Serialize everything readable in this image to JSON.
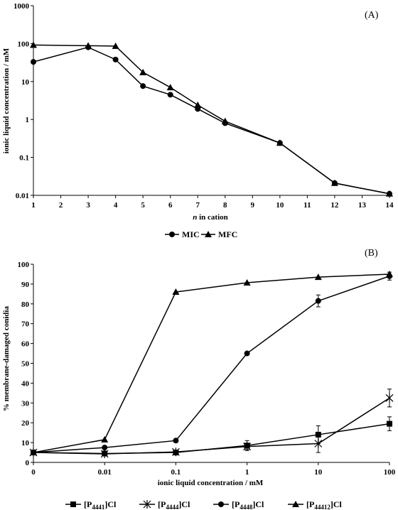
{
  "chart_data": [
    {
      "type": "line",
      "panel_label": "(A)",
      "xlabel_italic": "n",
      "xlabel_rest": " in cation",
      "ylabel": "ionic liquid concentration / mM",
      "x_scale": "linear",
      "y_scale": "log",
      "xlim": [
        1,
        14
      ],
      "ylim": [
        0.01,
        1000
      ],
      "x_ticks": [
        "1",
        "2",
        "3",
        "4",
        "5",
        "6",
        "7",
        "8",
        "9",
        "10",
        "11",
        "12",
        "13",
        "14"
      ],
      "y_ticks": [
        "0.01",
        "0.1",
        "1",
        "10",
        "100",
        "1000"
      ],
      "grid": false,
      "legend_position": "bottom-center",
      "series": [
        {
          "name": "MIC",
          "marker": "circle",
          "x": [
            1,
            3,
            4,
            5,
            6,
            7,
            8,
            10,
            12,
            14
          ],
          "y": [
            33,
            80,
            38,
            7.6,
            4.5,
            1.9,
            0.8,
            0.24,
            0.021,
            0.011
          ]
        },
        {
          "name": "MFC",
          "marker": "triangle",
          "x": [
            1,
            3,
            4,
            5,
            6,
            7,
            8,
            10,
            12,
            14
          ],
          "y": [
            92,
            88,
            86,
            17.5,
            7.0,
            2.4,
            0.9,
            0.24,
            0.021,
            0.011
          ]
        }
      ]
    },
    {
      "type": "line",
      "panel_label": "(B)",
      "xlabel": "ionic liquid concentration / mM",
      "ylabel": "% membrane-damaged conidia",
      "x_scale": "categorical",
      "y_scale": "linear",
      "categories": [
        "0",
        "0.01",
        "0.1",
        "1",
        "10",
        "100"
      ],
      "ylim": [
        0,
        100
      ],
      "y_ticks": [
        "0",
        "10",
        "20",
        "30",
        "40",
        "50",
        "60",
        "70",
        "80",
        "90",
        "100"
      ],
      "grid": false,
      "legend_position": "bottom-center",
      "series": [
        {
          "name_parts": [
            "[P",
            "4441",
            "]Cl"
          ],
          "marker": "square",
          "values": [
            5,
            4.5,
            5,
            8.5,
            14,
            19.5
          ],
          "errors": [
            0,
            0.8,
            0.8,
            2.5,
            4.5,
            3.5
          ]
        },
        {
          "name_parts": [
            "[P",
            "4444",
            "]Cl"
          ],
          "marker": "star",
          "values": [
            5,
            4.3,
            5.3,
            8,
            9.5,
            32.5
          ],
          "errors": [
            0,
            0.8,
            0.8,
            1.5,
            4.5,
            4.5
          ]
        },
        {
          "name_parts": [
            "[P",
            "4448",
            "]Cl"
          ],
          "marker": "circle",
          "values": [
            5,
            7.5,
            11,
            55,
            81.5,
            94
          ],
          "errors": [
            0,
            0.5,
            0.5,
            0.5,
            3,
            2
          ]
        },
        {
          "name_parts": [
            "[P",
            "44412",
            "]Cl"
          ],
          "marker": "triangle",
          "values": [
            5,
            11.5,
            86,
            90.7,
            93.5,
            95
          ],
          "errors": [
            0,
            0.5,
            0.5,
            0.5,
            0.5,
            0.5
          ]
        }
      ]
    }
  ]
}
